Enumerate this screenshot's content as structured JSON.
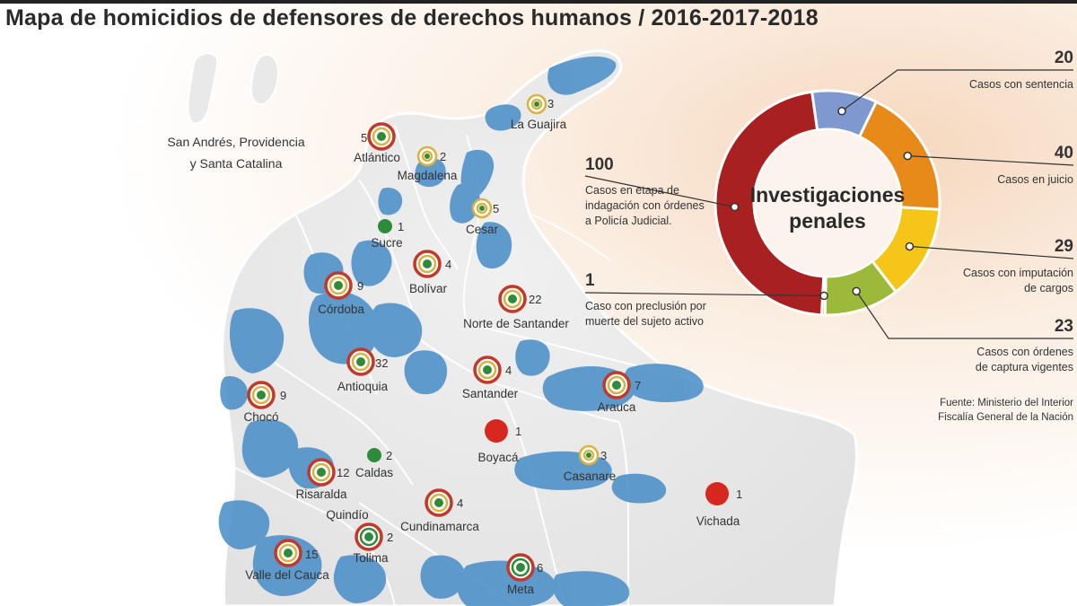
{
  "title": "Mapa de homicidios de defensores de derechos humanos / 2016-2017-2018",
  "islands_label": [
    "San Andrés, Providencia",
    "y Santa Catalina"
  ],
  "colors": {
    "victim_high": "#c0392b",
    "victim_mid": "#d8b341",
    "victim_low": "#2e8b3a",
    "water": "#4b8fc8",
    "land": "#ececec"
  },
  "regions": [
    {
      "name": "La Guajira",
      "count": 3,
      "marker": "ring-yellow"
    },
    {
      "name": "Atlántico",
      "count": 5,
      "marker": "ring-red"
    },
    {
      "name": "Magdalena",
      "count": 2,
      "marker": "ring-yellow"
    },
    {
      "name": "Cesar",
      "count": 5,
      "marker": "ring-yellow"
    },
    {
      "name": "Sucre",
      "count": 1,
      "marker": "dot-green"
    },
    {
      "name": "Bolívar",
      "count": 4,
      "marker": "ring-red"
    },
    {
      "name": "Córdoba",
      "count": 9,
      "marker": "ring-red"
    },
    {
      "name": "Norte de Santander",
      "count": 22,
      "marker": "ring-red"
    },
    {
      "name": "Antioquia",
      "count": 32,
      "marker": "ring-red"
    },
    {
      "name": "Santander",
      "count": 4,
      "marker": "ring-red"
    },
    {
      "name": "Chocó",
      "count": 9,
      "marker": "ring-red"
    },
    {
      "name": "Arauca",
      "count": 7,
      "marker": "ring-red"
    },
    {
      "name": "Boyacá",
      "count": 1,
      "marker": "dot-red"
    },
    {
      "name": "Caldas",
      "count": 2,
      "marker": "dot-green"
    },
    {
      "name": "Casanare",
      "count": 3,
      "marker": "ring-yellow"
    },
    {
      "name": "Risaralda",
      "count": 12,
      "marker": "ring-red"
    },
    {
      "name": "Quindío",
      "count": null,
      "marker": "none"
    },
    {
      "name": "Cundinamarca",
      "count": 4,
      "marker": "ring-red"
    },
    {
      "name": "Vichada",
      "count": 1,
      "marker": "dot-red"
    },
    {
      "name": "Tolima",
      "count": 2,
      "marker": "ring-green"
    },
    {
      "name": "Valle del Cauca",
      "count": 15,
      "marker": "ring-red"
    },
    {
      "name": "Meta",
      "count": 6,
      "marker": "ring-green"
    }
  ],
  "chart_data": {
    "type": "pie",
    "title": "Investigaciones penales",
    "categories": [
      "Casos con sentencia",
      "Casos en juicio",
      "Casos con imputación de cargos",
      "Casos con órdenes de captura vigentes",
      "Caso con preclusión por muerte del sujeto activo",
      "Casos en etapa de indagación con órdenes a Policía Judicial."
    ],
    "values": [
      20,
      40,
      29,
      23,
      1,
      100
    ],
    "colors": [
      "#7f98d0",
      "#e88a1a",
      "#f5c518",
      "#9cb93a",
      "#d4c535",
      "#a8201f"
    ],
    "labels": [
      {
        "value": "20",
        "text": [
          "Casos con sentencia"
        ]
      },
      {
        "value": "40",
        "text": [
          "Casos en juicio"
        ]
      },
      {
        "value": "29",
        "text": [
          "Casos con imputación",
          "de cargos"
        ]
      },
      {
        "value": "23",
        "text": [
          "Casos con órdenes",
          "de captura vigentes"
        ]
      },
      {
        "value": "1",
        "text": [
          "Caso con preclusión por",
          "muerte del sujeto activo"
        ]
      },
      {
        "value": "100",
        "text": [
          "Casos en etapa de",
          "indagación con órdenes",
          "a Policía Judicial."
        ]
      }
    ]
  },
  "donut_title": [
    "Investigaciones",
    "penales"
  ],
  "source": [
    "Fuente: Ministerio del Interior",
    "Fiscalía General de la Nación"
  ]
}
